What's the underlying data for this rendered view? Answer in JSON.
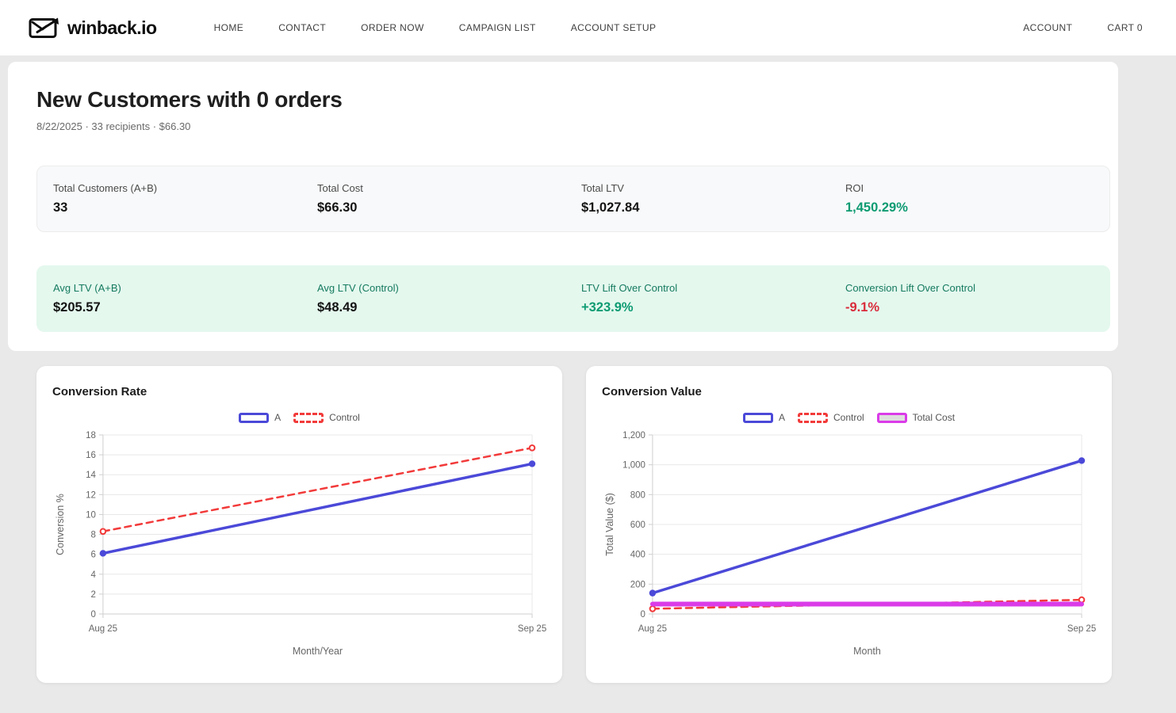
{
  "nav": {
    "brand": "winback.io",
    "left_items": [
      {
        "label": "HOME"
      },
      {
        "label": "CONTACT"
      },
      {
        "label": "ORDER NOW"
      },
      {
        "label": "CAMPAIGN LIST"
      },
      {
        "label": "ACCOUNT SETUP"
      }
    ],
    "right_items": [
      {
        "label": "ACCOUNT"
      },
      {
        "label": "CART 0"
      }
    ]
  },
  "page": {
    "title": "New Customers with 0 orders",
    "subtitle": "8/22/2025 · 33 recipients · $66.30"
  },
  "summary_cards": {
    "row1": [
      {
        "label": "Total Customers (A+B)",
        "value": "33",
        "tone": "dark"
      },
      {
        "label": "Total Cost",
        "value": "$66.30",
        "tone": "dark"
      },
      {
        "label": "Total LTV",
        "value": "$1,027.84",
        "tone": "dark"
      },
      {
        "label": "ROI",
        "value": "1,450.29%",
        "tone": "positive"
      }
    ],
    "row2": [
      {
        "label": "Avg LTV (A+B)",
        "value": "$205.57",
        "tone": "dark"
      },
      {
        "label": "Avg LTV (Control)",
        "value": "$48.49",
        "tone": "dark"
      },
      {
        "label": "LTV Lift Over Control",
        "value": "+323.9%",
        "tone": "positive"
      },
      {
        "label": "Conversion Lift Over Control",
        "value": "-9.1%",
        "tone": "negative"
      }
    ]
  },
  "colors": {
    "positive": "#0d9b72",
    "negative": "#d92b3a",
    "series_blue": "#4b49d8",
    "series_red": "#f23a3a",
    "series_magenta": "#da3be8",
    "grid": "#e8e8e8",
    "axis": "#cfcfcf",
    "tick_text": "#666666"
  },
  "chart_data": [
    {
      "type": "line",
      "title": "Conversion Rate",
      "x": [
        "Aug 25",
        "Sep 25"
      ],
      "xlabel": "Month/Year",
      "ylabel": "Conversion %",
      "ylim": [
        0,
        18
      ],
      "ytick_step": 2,
      "grid": true,
      "legend_position": "top",
      "series": [
        {
          "name": "A",
          "values": [
            6.1,
            15.1
          ],
          "color": "#4b49d8",
          "dash": false,
          "width": 3.5,
          "points": "filled",
          "swatch_fill": "#ffffff"
        },
        {
          "name": "Control",
          "values": [
            8.3,
            16.7
          ],
          "color": "#f23a3a",
          "dash": true,
          "width": 2.5,
          "points": "open",
          "swatch_fill": "#ffffff"
        }
      ]
    },
    {
      "type": "line",
      "title": "Conversion Value",
      "x": [
        "Aug 25",
        "Sep 25"
      ],
      "xlabel": "Month",
      "ylabel": "Total Value ($)",
      "ylim": [
        0,
        1200
      ],
      "ytick_step": 200,
      "grid": true,
      "legend_position": "top",
      "series": [
        {
          "name": "A",
          "values": [
            140,
            1027.84
          ],
          "color": "#4b49d8",
          "dash": false,
          "width": 3.5,
          "points": "filled",
          "swatch_fill": "#ffffff"
        },
        {
          "name": "Control",
          "values": [
            35,
            95
          ],
          "color": "#f23a3a",
          "dash": true,
          "width": 2.5,
          "points": "open",
          "swatch_fill": "#ffffff"
        },
        {
          "name": "Total Cost",
          "values": [
            66.3,
            66.3
          ],
          "color": "#da3be8",
          "dash": false,
          "width": 6,
          "points": "none",
          "swatch_fill": "#dedede"
        }
      ]
    }
  ]
}
